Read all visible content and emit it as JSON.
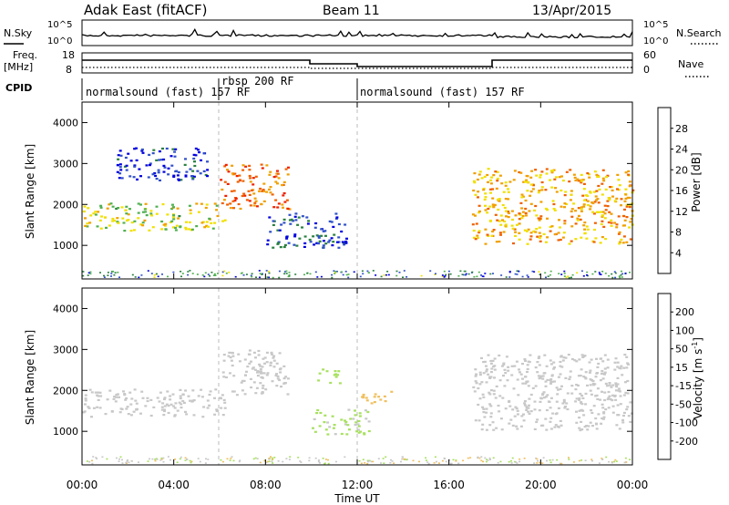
{
  "header": {
    "station": "Adak East (fitACF)",
    "beam": "Beam 11",
    "date": "13/Apr/2015"
  },
  "side_labels": {
    "nsky": "N.Sky",
    "freq_line1": "Freq.",
    "freq_line2": "[MHz]",
    "cpid": "CPID",
    "nsearch": "N.Search",
    "nave": "Nave"
  },
  "noise_axis": {
    "left_top": "10^5",
    "left_bottom": "10^0",
    "right_top": "10^5",
    "right_bottom": "10^0"
  },
  "freq_axis": {
    "ticks": [
      "18",
      "8"
    ]
  },
  "nave_axis": {
    "ticks": [
      "60",
      "0"
    ]
  },
  "cpid_segments": [
    {
      "label": "normalsound (fast) 157 RF",
      "start_h": 0,
      "end_h": 6
    },
    {
      "label": "rbsp 200 RF",
      "start_h": 6,
      "end_h": 12
    },
    {
      "label": "normalsound (fast) 157 RF",
      "start_h": 12,
      "end_h": 24
    }
  ],
  "x_axis": {
    "label": "Time UT",
    "ticks": [
      "00:00",
      "04:00",
      "08:00",
      "12:00",
      "16:00",
      "20:00",
      "00:00"
    ]
  },
  "chart_data": [
    {
      "type": "heatmap",
      "title": "",
      "ylabel": "Slant Range [km]",
      "xlabel": "Time UT",
      "x_range_hours": [
        0,
        24
      ],
      "ylim": [
        180,
        4500
      ],
      "y_ticks": [
        "1000",
        "2000",
        "3000",
        "4000"
      ],
      "colorbar": {
        "label": "Power [dB]",
        "ticks": [
          "4",
          "8",
          "12",
          "16",
          "20",
          "24",
          "28"
        ],
        "range": [
          0,
          30
        ],
        "colors": [
          "#0000e0",
          "#3050c8",
          "#2a8040",
          "#50b050",
          "#f0e000",
          "#f0a000",
          "#f06000",
          "#f02000"
        ]
      },
      "echo_regions": [
        {
          "t0": 0.0,
          "t1": 6.2,
          "r0": 1380,
          "r1": 2050,
          "power": 16
        },
        {
          "t0": 1.5,
          "t1": 5.5,
          "r0": 2600,
          "r1": 3400,
          "power": 4
        },
        {
          "t0": 6.0,
          "t1": 9.0,
          "r0": 1900,
          "r1": 3000,
          "power": 24
        },
        {
          "t0": 8.0,
          "t1": 11.5,
          "r0": 950,
          "r1": 1800,
          "power": 6
        },
        {
          "t0": 17.0,
          "t1": 24.0,
          "r0": 1050,
          "r1": 2900,
          "power": 20
        }
      ]
    },
    {
      "type": "heatmap",
      "title": "",
      "ylabel": "Slant Range [km]",
      "xlabel": "Time UT",
      "x_range_hours": [
        0,
        24
      ],
      "ylim": [
        180,
        4500
      ],
      "y_ticks": [
        "1000",
        "2000",
        "3000",
        "4000"
      ],
      "colorbar": {
        "label": "Velocity [m s^-1]",
        "ticks": [
          "200",
          "100",
          "50",
          "15",
          "-15",
          "-50",
          "-100",
          "-200"
        ],
        "range": [
          -250,
          250
        ],
        "colors": [
          "#2040c0",
          "#2a7a40",
          "#50b850",
          "#a8e060",
          "#c8c8c8",
          "#f0c060",
          "#f0a000",
          "#f06000",
          "#e00000"
        ]
      },
      "echo_regions": [
        {
          "t0": 0.0,
          "t1": 6.2,
          "r0": 1380,
          "r1": 2050,
          "velocity": 0
        },
        {
          "t0": 6.0,
          "t1": 9.0,
          "r0": 1900,
          "r1": 3000,
          "velocity": 0
        },
        {
          "t0": 10.2,
          "t1": 11.3,
          "r0": 2200,
          "r1": 2550,
          "velocity": 60
        },
        {
          "t0": 10.0,
          "t1": 12.5,
          "r0": 950,
          "r1": 1550,
          "velocity": 40
        },
        {
          "t0": 12.0,
          "t1": 13.5,
          "r0": 1700,
          "r1": 2000,
          "velocity": -60
        },
        {
          "t0": 17.0,
          "t1": 24.0,
          "r0": 1050,
          "r1": 2900,
          "velocity": 0
        }
      ]
    }
  ]
}
